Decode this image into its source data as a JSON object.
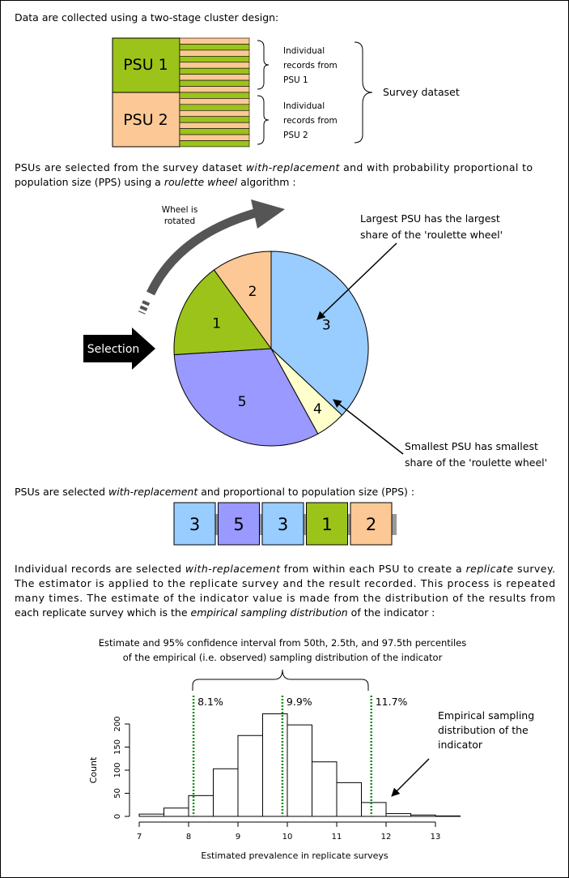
{
  "intro": "Data are collected using a two-stage cluster design:",
  "cluster": {
    "psus": [
      "PSU 1",
      "PSU 2"
    ],
    "records": [
      [
        "Individual",
        "records from",
        "PSU 1"
      ],
      [
        "Individual",
        "records from",
        "PSU 2"
      ]
    ],
    "dataset": "Survey dataset"
  },
  "para2": {
    "lines": [
      [
        "PSUs are selected from the survey dataset ",
        "with-replacement",
        " and with probability proportional to"
      ],
      [
        "population size (PPS) using a ",
        "roulette wheel",
        " algorithm :"
      ]
    ]
  },
  "wheel": {
    "rotated": [
      "Wheel is",
      "rotated"
    ],
    "selection": "Selection",
    "largest": [
      "Largest PSU has the largest",
      "share of the 'roulette wheel'"
    ],
    "smallest": [
      "Smallest PSU has smallest",
      "share of the 'roulette wheel'"
    ],
    "slices": [
      {
        "label": "3",
        "value": 37,
        "color": "#99ccff"
      },
      {
        "label": "4",
        "value": 5,
        "color": "#ffffcc"
      },
      {
        "label": "5",
        "value": 32,
        "color": "#9999ff"
      },
      {
        "label": "1",
        "value": 16,
        "color": "#9cc31a"
      },
      {
        "label": "2",
        "value": 10,
        "color": "#fbc896"
      }
    ]
  },
  "para3": {
    "lines": [
      [
        "PSUs are selected ",
        "with-replacement",
        " and proportional to population size (PPS) :"
      ]
    ]
  },
  "selected": [
    {
      "label": "3",
      "color": "#99ccff"
    },
    {
      "label": "5",
      "color": "#9999ff"
    },
    {
      "label": "3",
      "color": "#99ccff"
    },
    {
      "label": "1",
      "color": "#9cc31a"
    },
    {
      "label": "2",
      "color": "#fbc896"
    }
  ],
  "para4": {
    "lines": [
      [
        "Individual records are selected ",
        "with-replacement",
        " from within each PSU to create a ",
        "replicate",
        " survey."
      ],
      [
        "The estimator is applied to the replicate survey and the result recorded. This process is repeated"
      ],
      [
        "many times. The estimate of the indicator value is made from the distribution of the results from"
      ],
      [
        "each replicate survey which is the ",
        "empirical sampling distribution",
        " of the indicator :"
      ]
    ]
  },
  "caption": [
    "Estimate and 95% confidence interval from 50th, 2.5th, and 97.5th percentiles",
    "of the empirical (i.e. observed) sampling distribution of the indicator"
  ],
  "annotation": [
    "Empirical sampling",
    "distribution of the",
    "indicator"
  ],
  "histogram": {
    "type": "histogram",
    "bins": [
      7,
      7.5,
      8,
      8.5,
      9,
      9.5,
      10,
      10.5,
      11,
      11.5,
      12,
      12.5,
      13,
      13.5
    ],
    "counts": [
      5,
      18,
      45,
      103,
      175,
      222,
      198,
      118,
      73,
      30,
      6,
      3,
      1
    ],
    "xlim": [
      7,
      13.5
    ],
    "ylim": [
      0,
      220
    ],
    "xticks": [
      7,
      8,
      9,
      10,
      11,
      12,
      13
    ],
    "yticks": [
      0,
      50,
      100,
      150,
      200
    ],
    "percentiles": [
      {
        "value": 8.1,
        "label": "8.1%"
      },
      {
        "value": 9.9,
        "label": "9.9%"
      },
      {
        "value": 11.7,
        "label": "11.7%"
      }
    ],
    "percentile_color": "#1a8c1a",
    "xlabel": "Estimated prevalence in replicate surveys",
    "ylabel": "Count"
  }
}
